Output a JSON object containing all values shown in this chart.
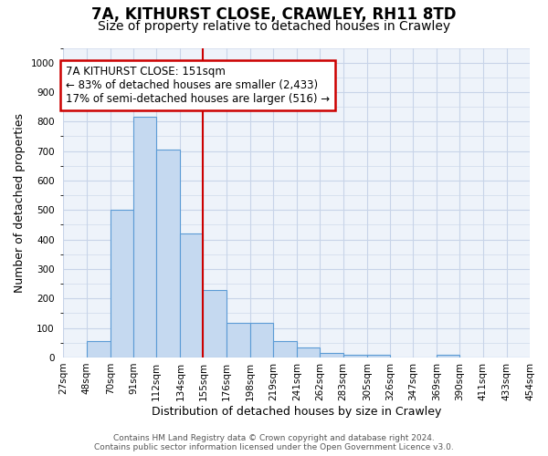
{
  "title_line1": "7A, KITHURST CLOSE, CRAWLEY, RH11 8TD",
  "title_line2": "Size of property relative to detached houses in Crawley",
  "xlabel": "Distribution of detached houses by size in Crawley",
  "ylabel": "Number of detached properties",
  "bar_color": "#c5d9f0",
  "bar_edge_color": "#5b9bd5",
  "bin_edges": [
    27,
    48,
    70,
    91,
    112,
    134,
    155,
    176,
    198,
    219,
    241,
    262,
    283,
    305,
    326,
    347,
    369,
    390,
    411,
    433,
    454
  ],
  "bar_heights": [
    0,
    55,
    500,
    815,
    705,
    420,
    230,
    118,
    118,
    57,
    35,
    15,
    10,
    10,
    0,
    0,
    10,
    0,
    0,
    0
  ],
  "tick_labels": [
    "27sqm",
    "48sqm",
    "70sqm",
    "91sqm",
    "112sqm",
    "134sqm",
    "155sqm",
    "176sqm",
    "198sqm",
    "219sqm",
    "241sqm",
    "262sqm",
    "283sqm",
    "305sqm",
    "326sqm",
    "347sqm",
    "369sqm",
    "390sqm",
    "411sqm",
    "433sqm",
    "454sqm"
  ],
  "ylim": [
    0,
    1050
  ],
  "yticks": [
    0,
    100,
    200,
    300,
    400,
    500,
    600,
    700,
    800,
    900,
    1000
  ],
  "vline_x": 155,
  "vline_color": "#cc0000",
  "annotation_text": "7A KITHURST CLOSE: 151sqm\n← 83% of detached houses are smaller (2,433)\n17% of semi-detached houses are larger (516) →",
  "annotation_box_color": "#cc0000",
  "annotation_bg": "white",
  "footer_text": "Contains HM Land Registry data © Crown copyright and database right 2024.\nContains public sector information licensed under the Open Government Licence v3.0.",
  "bg_color": "white",
  "plot_bg_color": "#eef3fa",
  "grid_color": "#c8d4e8",
  "title_fontsize": 12,
  "subtitle_fontsize": 10,
  "axis_label_fontsize": 9,
  "tick_fontsize": 7.5,
  "annotation_fontsize": 8.5,
  "footer_fontsize": 6.5
}
